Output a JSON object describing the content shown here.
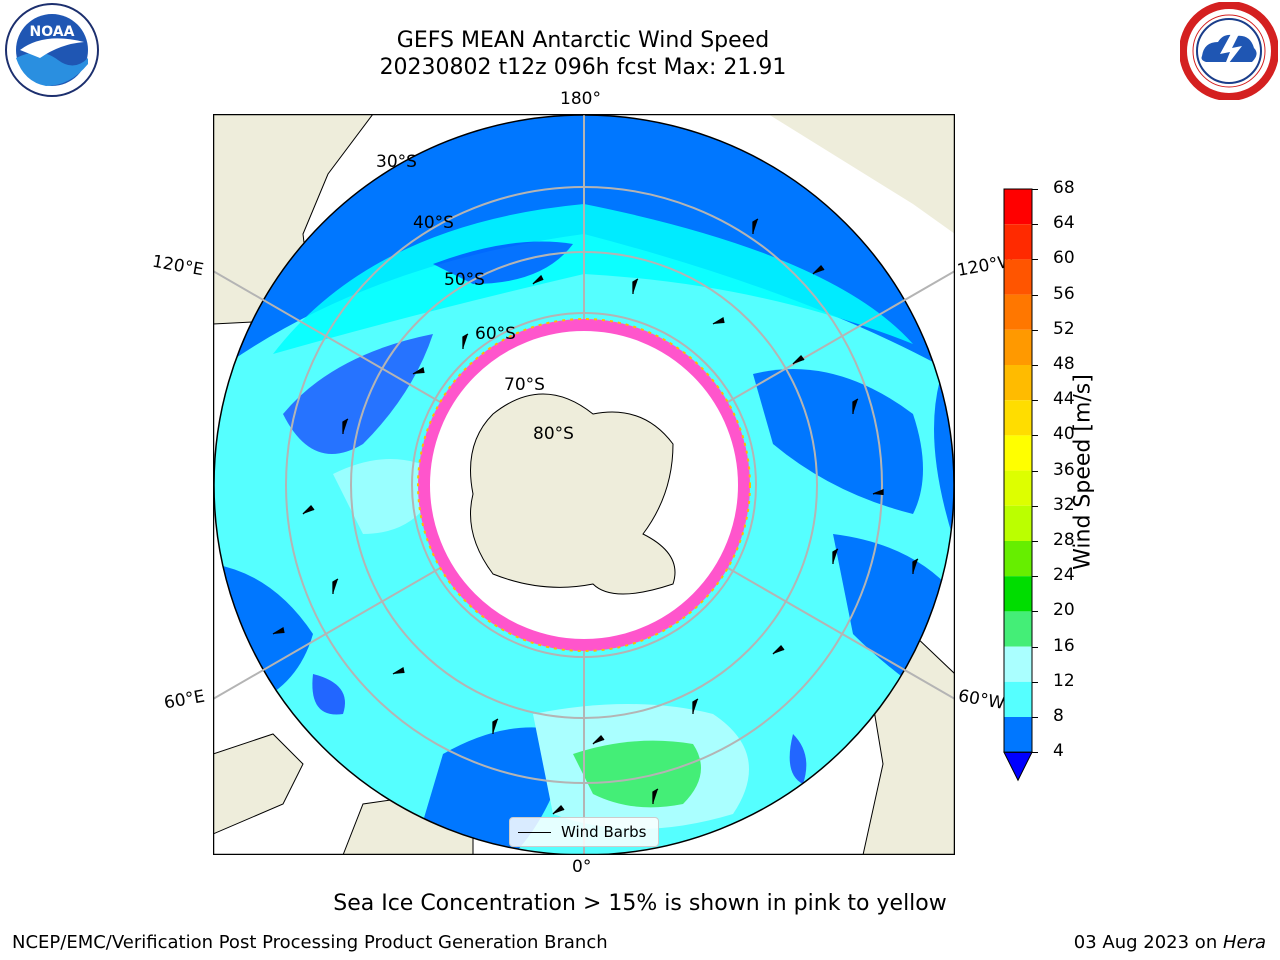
{
  "header": {
    "title_line1": "GEFS MEAN Antarctic Wind Speed",
    "title_line2": "20230802 t12z 096h fcst   Max: 21.91"
  },
  "logos": {
    "noaa": {
      "text": "NOAA",
      "ring_text": "NATIONAL OCEANIC AND ATMOSPHERIC ADMINISTRATION · U.S. DEPARTMENT OF COMMERCE"
    },
    "nws": {
      "ring_text": "NATIONAL WEATHER SERVICE"
    }
  },
  "map": {
    "projection": "south-polar-stereographic",
    "longitude_labels": {
      "top": "180°",
      "bottom": "0°",
      "upper_left": "120°E",
      "upper_right": "120°W",
      "lower_left": "60°E",
      "lower_right": "60°W"
    },
    "latitude_labels": [
      "30°S",
      "40°S",
      "50°S",
      "60°S",
      "70°S",
      "80°S"
    ],
    "legend": {
      "label": "Wind Barbs"
    }
  },
  "colorbar": {
    "label": "Wind Speed [m/s]",
    "ticks": [
      "68",
      "64",
      "60",
      "56",
      "52",
      "48",
      "44",
      "40",
      "36",
      "32",
      "28",
      "24",
      "20",
      "16",
      "12",
      "8",
      "4"
    ],
    "colors": [
      "#ff0000",
      "#ff2a00",
      "#ff5500",
      "#ff7700",
      "#ff9900",
      "#ffbb00",
      "#ffdd00",
      "#ffff00",
      "#ddff00",
      "#bbff00",
      "#66ee00",
      "#00dd00",
      "#44ee77",
      "#aaffff",
      "#55ffff",
      "#00ffff",
      "#0077ff"
    ],
    "extend_color": "#0000ff"
  },
  "notes": {
    "sea_ice": "Sea Ice Concentration > 15% is shown in pink to yellow"
  },
  "footer": {
    "left": "NCEP/EMC/Verification Post Processing Product Generation Branch",
    "date": "03 Aug 2023 on ",
    "host": "Hera"
  }
}
